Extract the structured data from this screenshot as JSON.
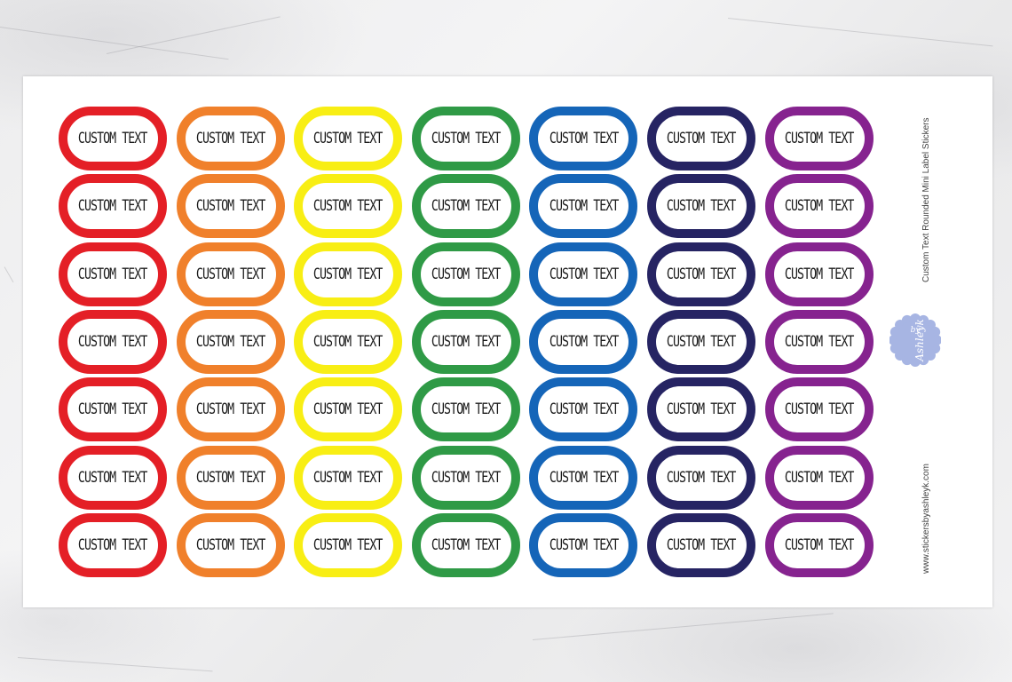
{
  "sheet": {
    "rows": 7,
    "columns": [
      {
        "color": "#e41f26"
      },
      {
        "color": "#f0802b"
      },
      {
        "color": "#f8ee14"
      },
      {
        "color": "#2f9a46"
      },
      {
        "color": "#1565b8"
      },
      {
        "color": "#262463"
      },
      {
        "color": "#86238f"
      }
    ],
    "sticker_text": "CUSTOM TEXT"
  },
  "side": {
    "title": "Custom Text Rounded Mini Label Stickers",
    "url": "www.stickersbyashleyk.com"
  },
  "logo": {
    "text_top": "by",
    "text_main": "Ashleyk",
    "color": "#a7b5e3",
    "icon": "scalloped-badge-logo"
  },
  "background": {
    "color": "#eeeeef"
  }
}
